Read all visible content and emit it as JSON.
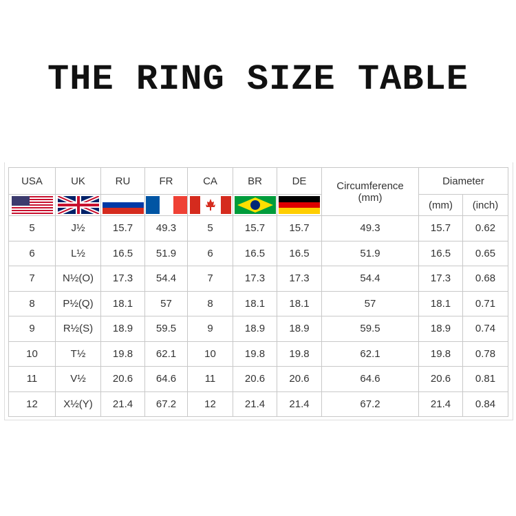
{
  "title": "THE RING SIZE TABLE",
  "table": {
    "header": {
      "countries": [
        "USA",
        "UK",
        "RU",
        "FR",
        "CA",
        "BR",
        "DE"
      ],
      "circumference": [
        "Circumference",
        "(mm)"
      ],
      "diameter": "Diameter",
      "diameter_units": [
        "(mm)",
        "(inch)"
      ]
    },
    "rows": [
      [
        5,
        "J½",
        15.7,
        49.3,
        5,
        15.7,
        15.7,
        49.3,
        15.7,
        0.62
      ],
      [
        6,
        "L½",
        16.5,
        51.9,
        6,
        16.5,
        16.5,
        51.9,
        16.5,
        0.65
      ],
      [
        7,
        "N½(O)",
        17.3,
        54.4,
        7,
        17.3,
        17.3,
        54.4,
        17.3,
        0.68
      ],
      [
        8,
        "P½(Q)",
        18.1,
        57,
        8,
        18.1,
        18.1,
        57,
        18.1,
        0.71
      ],
      [
        9,
        "R½(S)",
        18.9,
        59.5,
        9,
        18.9,
        18.9,
        59.5,
        18.9,
        0.74
      ],
      [
        10,
        "T½",
        19.8,
        62.1,
        10,
        19.8,
        19.8,
        62.1,
        19.8,
        0.78
      ],
      [
        11,
        "V½",
        20.6,
        64.6,
        11,
        20.6,
        20.6,
        64.6,
        20.6,
        0.81
      ],
      [
        12,
        "X½(Y)",
        21.4,
        67.2,
        12,
        21.4,
        21.4,
        67.2,
        21.4,
        0.84
      ]
    ]
  }
}
